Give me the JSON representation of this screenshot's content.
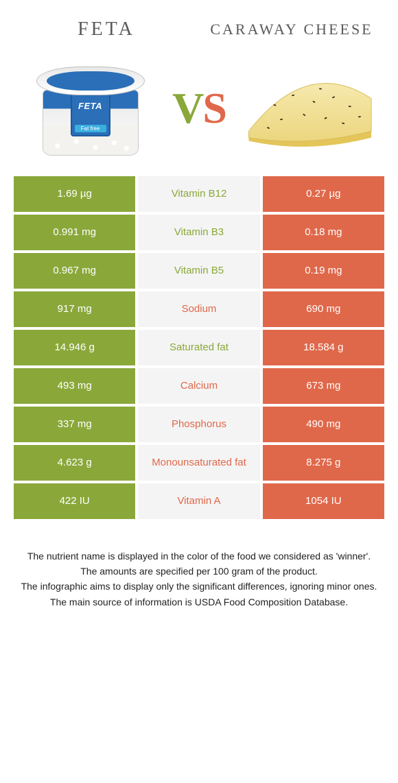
{
  "colors": {
    "feta_green": "#8aa83a",
    "caraway_orange": "#e0684a",
    "mid_bg": "#f4f4f4",
    "page_bg": "#ffffff",
    "title_text": "#5a5a5a",
    "cheese_fill": "#f1e19a",
    "cheese_rind": "#e6c95f",
    "seed": "#3a2a12"
  },
  "header": {
    "left_title": "FETA",
    "right_title": "CARAWAY CHEESE",
    "vs_left_char": "V",
    "vs_right_char": "S"
  },
  "rows": [
    {
      "nutrient": "Vitamin B12",
      "left": "1.69 µg",
      "right": "0.27 µg",
      "winner": "left"
    },
    {
      "nutrient": "Vitamin B3",
      "left": "0.991 mg",
      "right": "0.18 mg",
      "winner": "left"
    },
    {
      "nutrient": "Vitamin B5",
      "left": "0.967 mg",
      "right": "0.19 mg",
      "winner": "left"
    },
    {
      "nutrient": "Sodium",
      "left": "917 mg",
      "right": "690 mg",
      "winner": "right"
    },
    {
      "nutrient": "Saturated fat",
      "left": "14.946 g",
      "right": "18.584 g",
      "winner": "left"
    },
    {
      "nutrient": "Calcium",
      "left": "493 mg",
      "right": "673 mg",
      "winner": "right"
    },
    {
      "nutrient": "Phosphorus",
      "left": "337 mg",
      "right": "490 mg",
      "winner": "right"
    },
    {
      "nutrient": "Monounsaturated fat",
      "left": "4.623 g",
      "right": "8.275 g",
      "winner": "right"
    },
    {
      "nutrient": "Vitamin A",
      "left": "422 IU",
      "right": "1054 IU",
      "winner": "right"
    }
  ],
  "footnotes": [
    "The nutrient name is displayed in the color of the food we considered as 'winner'.",
    "The amounts are specified per 100 gram of the product.",
    "The infographic aims to display only the significant differences, ignoring minor ones.",
    "The main source of information is USDA Food Composition Database."
  ]
}
